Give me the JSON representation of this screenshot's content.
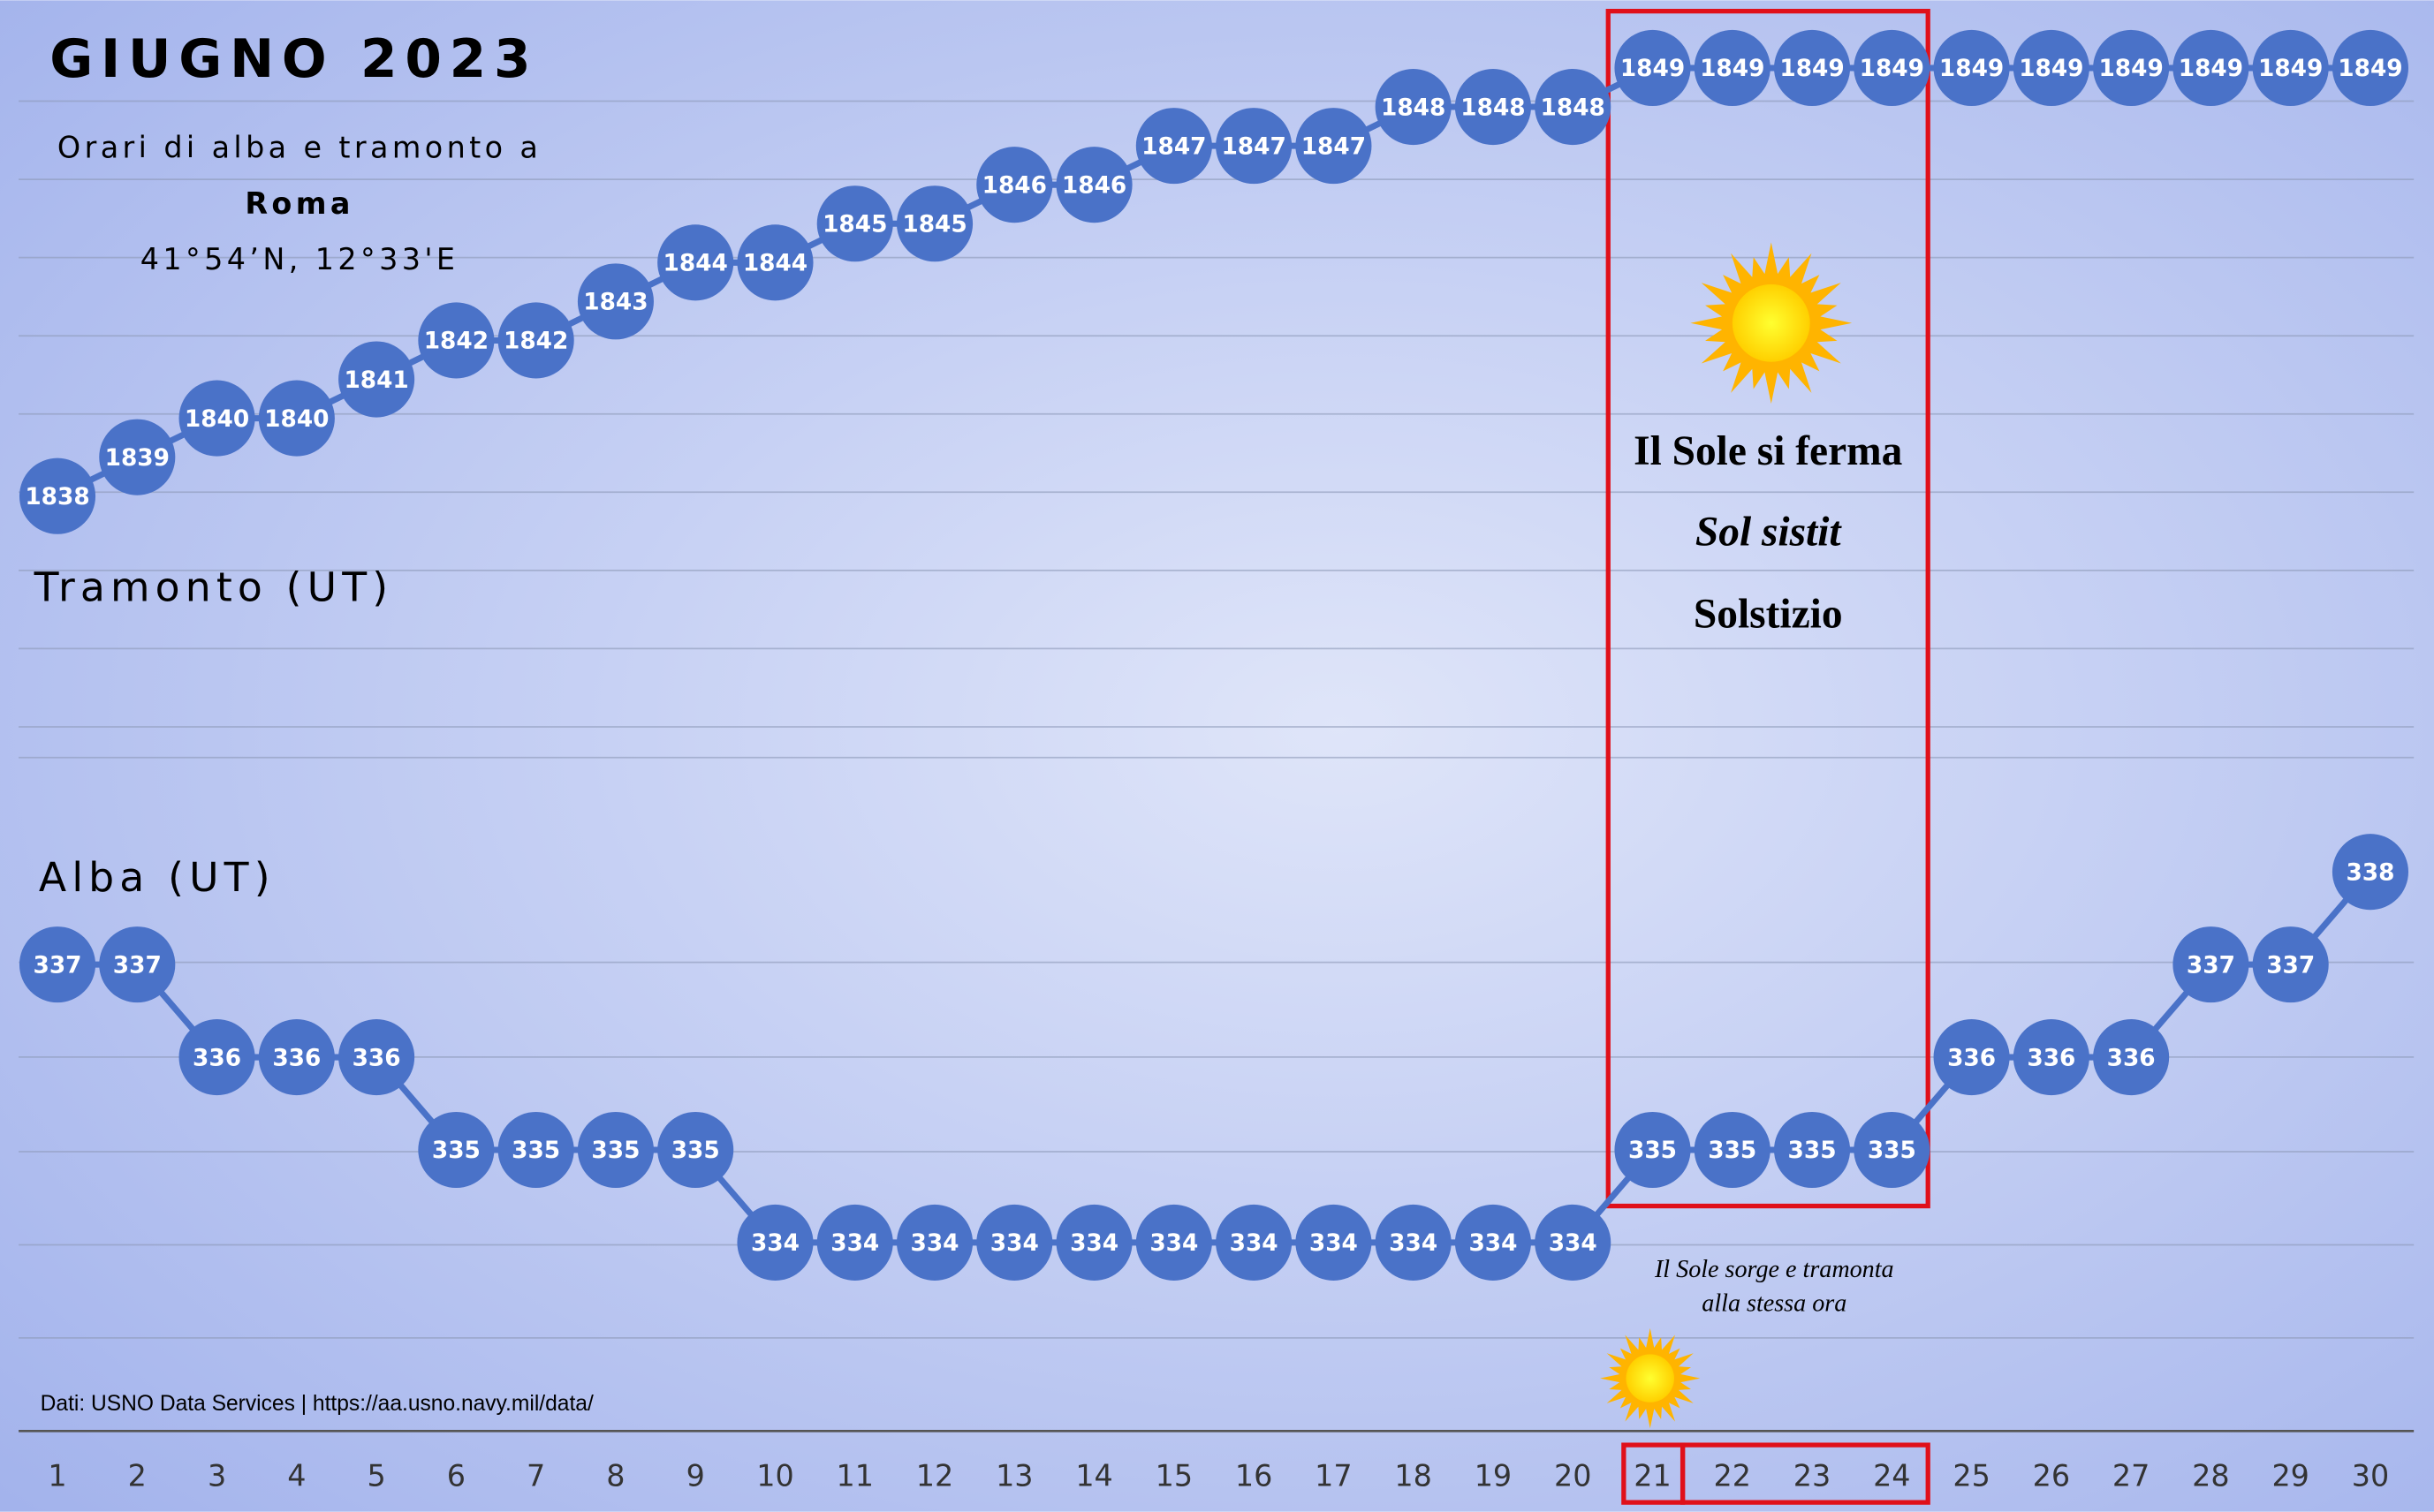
{
  "chart_data": {
    "type": "line",
    "title": "GIUGNO 2023",
    "subtitle": [
      "Orari di alba e tramonto a",
      "Roma",
      "41°54’N, 12°33'E"
    ],
    "categories": [
      "1",
      "2",
      "3",
      "4",
      "5",
      "6",
      "7",
      "8",
      "9",
      "10",
      "11",
      "12",
      "13",
      "14",
      "15",
      "16",
      "17",
      "18",
      "19",
      "20",
      "21",
      "22",
      "23",
      "24",
      "25",
      "26",
      "27",
      "28",
      "29",
      "30"
    ],
    "series": [
      {
        "name": "Tramonto (UT)",
        "color": "#4a72c8",
        "values": [
          1838,
          1839,
          1840,
          1840,
          1841,
          1842,
          1842,
          1843,
          1844,
          1844,
          1845,
          1845,
          1846,
          1846,
          1847,
          1847,
          1847,
          1848,
          1848,
          1848,
          1849,
          1849,
          1849,
          1849,
          1849,
          1849,
          1849,
          1849,
          1849,
          1849
        ]
      },
      {
        "name": "Alba (UT)",
        "color": "#4a72c8",
        "axis": "y2",
        "values": [
          337,
          337,
          336,
          336,
          336,
          335,
          335,
          335,
          335,
          334,
          334,
          334,
          334,
          334,
          334,
          334,
          334,
          334,
          334,
          334,
          335,
          335,
          335,
          335,
          336,
          336,
          336,
          337,
          337,
          338
        ]
      }
    ],
    "ylim": [
      1832,
      1850.5
    ],
    "y2lim": [
      332,
      339.2
    ],
    "annotations": [
      "Il Sole si ferma",
      "Sol sistit",
      "Solstizio",
      "Il Sole sorge e tramonta",
      "alla stessa ora"
    ],
    "source": "Dati: USNO Data Services | https://aa.usno.navy.mil/data/"
  }
}
